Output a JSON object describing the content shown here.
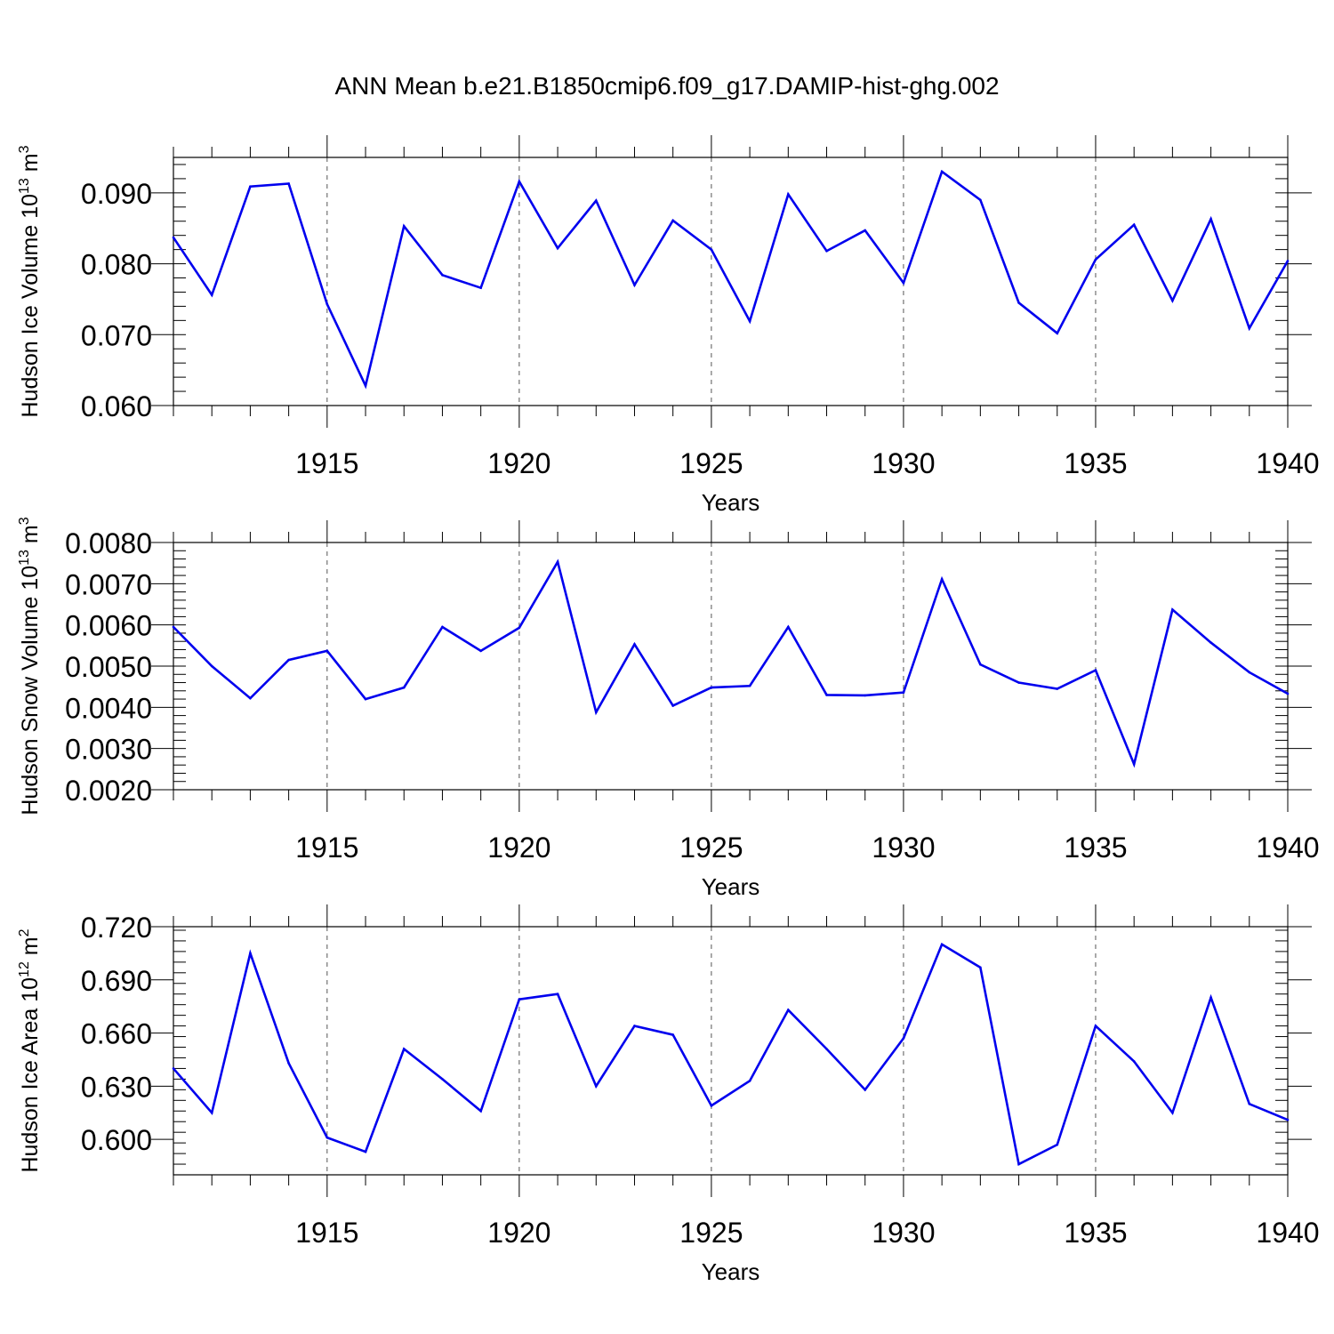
{
  "title": "ANN Mean b.e21.B1850cmip6.f09_g17.DAMIP-hist-ghg.002",
  "colors": {
    "line": "#0000ee",
    "axis": "#000000",
    "grid": "#555555"
  },
  "chart_data": [
    {
      "type": "line",
      "title": "ANN Mean b.e21.B1850cmip6.f09_g17.DAMIP-hist-ghg.002",
      "xlabel": "Years",
      "ylabel": {
        "text": "Hudson Ice Volume 10",
        "exp": "13",
        "unit": " m",
        "unit_exp": "3"
      },
      "xlim": [
        1911,
        1940
      ],
      "ylim": [
        0.06,
        0.095
      ],
      "x_major_ticks": [
        1915,
        1920,
        1925,
        1930,
        1935,
        1940
      ],
      "x_tick_labels": [
        "1915",
        "1920",
        "1925",
        "1930",
        "1935",
        "1940"
      ],
      "y_major_ticks": [
        0.06,
        0.07,
        0.08,
        0.09
      ],
      "y_tick_labels": [
        "0.060",
        "0.070",
        "0.080",
        "0.090"
      ],
      "y_minor_step": 0.002,
      "x": [
        1911,
        1912,
        1913,
        1914,
        1915,
        1916,
        1917,
        1918,
        1919,
        1920,
        1921,
        1922,
        1923,
        1924,
        1925,
        1926,
        1927,
        1928,
        1929,
        1930,
        1931,
        1932,
        1933,
        1934,
        1935,
        1936,
        1937,
        1938,
        1939,
        1940
      ],
      "series": [
        {
          "name": "Hudson Ice Volume",
          "values": [
            0.0837,
            0.0756,
            0.0909,
            0.0913,
            0.0743,
            0.0628,
            0.0853,
            0.0784,
            0.0766,
            0.0916,
            0.0822,
            0.0889,
            0.077,
            0.0861,
            0.082,
            0.0719,
            0.0898,
            0.0818,
            0.0847,
            0.0773,
            0.093,
            0.089,
            0.0745,
            0.0702,
            0.0806,
            0.0855,
            0.0748,
            0.0863,
            0.0709,
            0.0804
          ]
        }
      ]
    },
    {
      "type": "line",
      "xlabel": "Years",
      "ylabel": {
        "text": "Hudson Snow Volume 10",
        "exp": "13",
        "unit": " m",
        "unit_exp": "3"
      },
      "xlim": [
        1911,
        1940
      ],
      "ylim": [
        0.002,
        0.008
      ],
      "x_major_ticks": [
        1915,
        1920,
        1925,
        1930,
        1935,
        1940
      ],
      "x_tick_labels": [
        "1915",
        "1920",
        "1925",
        "1930",
        "1935",
        "1940"
      ],
      "y_major_ticks": [
        0.002,
        0.003,
        0.004,
        0.005,
        0.006,
        0.007,
        0.008
      ],
      "y_tick_labels": [
        "0.0020",
        "0.0030",
        "0.0040",
        "0.0050",
        "0.0060",
        "0.0070",
        "0.0080"
      ],
      "y_minor_step": 0.0002,
      "x": [
        1911,
        1912,
        1913,
        1914,
        1915,
        1916,
        1917,
        1918,
        1919,
        1920,
        1921,
        1922,
        1923,
        1924,
        1925,
        1926,
        1927,
        1928,
        1929,
        1930,
        1931,
        1932,
        1933,
        1934,
        1935,
        1936,
        1937,
        1938,
        1939,
        1940
      ],
      "series": [
        {
          "name": "Hudson Snow Volume",
          "values": [
            0.00595,
            0.005,
            0.00422,
            0.00515,
            0.00537,
            0.0042,
            0.00448,
            0.00595,
            0.00537,
            0.00593,
            0.00753,
            0.00388,
            0.00553,
            0.00404,
            0.00448,
            0.00452,
            0.00595,
            0.0043,
            0.00429,
            0.00436,
            0.00711,
            0.00504,
            0.0046,
            0.00445,
            0.0049,
            0.00262,
            0.00637,
            0.00557,
            0.00485,
            0.00433
          ]
        }
      ]
    },
    {
      "type": "line",
      "xlabel": "Years",
      "ylabel": {
        "text": "Hudson Ice Area 10",
        "exp": "12",
        "unit": " m",
        "unit_exp": "2"
      },
      "xlim": [
        1911,
        1940
      ],
      "ylim": [
        0.58,
        0.72
      ],
      "x_major_ticks": [
        1915,
        1920,
        1925,
        1930,
        1935,
        1940
      ],
      "x_tick_labels": [
        "1915",
        "1920",
        "1925",
        "1930",
        "1935",
        "1940"
      ],
      "y_major_ticks": [
        0.6,
        0.63,
        0.66,
        0.69,
        0.72
      ],
      "y_tick_labels": [
        "0.600",
        "0.630",
        "0.660",
        "0.690",
        "0.720"
      ],
      "y_minor_step": 0.006,
      "x": [
        1911,
        1912,
        1913,
        1914,
        1915,
        1916,
        1917,
        1918,
        1919,
        1920,
        1921,
        1922,
        1923,
        1924,
        1925,
        1926,
        1927,
        1928,
        1929,
        1930,
        1931,
        1932,
        1933,
        1934,
        1935,
        1936,
        1937,
        1938,
        1939,
        1940
      ],
      "series": [
        {
          "name": "Hudson Ice Area",
          "values": [
            0.64,
            0.615,
            0.705,
            0.643,
            0.601,
            0.593,
            0.651,
            0.634,
            0.616,
            0.679,
            0.682,
            0.63,
            0.664,
            0.659,
            0.619,
            0.633,
            0.673,
            0.651,
            0.628,
            0.657,
            0.71,
            0.697,
            0.586,
            0.597,
            0.664,
            0.644,
            0.615,
            0.68,
            0.62,
            0.611
          ]
        }
      ]
    }
  ]
}
